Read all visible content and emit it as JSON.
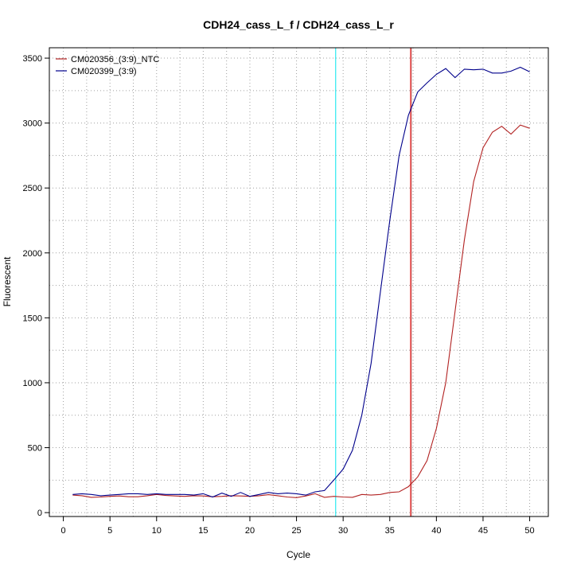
{
  "chart_data": {
    "type": "line",
    "title": "CDH24_cass_L_f / CDH24_cass_L_r",
    "xlabel": "Cycle",
    "ylabel": "Fluorescent",
    "xlim": [
      -1.5,
      52
    ],
    "ylim": [
      -30,
      3580
    ],
    "x_ticks": [
      0,
      5,
      10,
      15,
      20,
      25,
      30,
      35,
      40,
      45,
      50
    ],
    "y_ticks": [
      0,
      500,
      1000,
      1500,
      2000,
      2500,
      3000,
      3500
    ],
    "grid": true,
    "legend_position": "top-left",
    "threshold_lines": [
      {
        "x": 29.2,
        "color": "#00e5ee"
      },
      {
        "x": 37.2,
        "color": "#ff6a6a"
      },
      {
        "x": 37.3,
        "color": "#b22222"
      }
    ],
    "x": [
      1,
      2,
      3,
      4,
      5,
      6,
      7,
      8,
      9,
      10,
      11,
      12,
      13,
      14,
      15,
      16,
      17,
      18,
      19,
      20,
      21,
      22,
      23,
      24,
      25,
      26,
      27,
      28,
      29,
      30,
      31,
      32,
      33,
      34,
      35,
      36,
      37,
      38,
      39,
      40,
      41,
      42,
      43,
      44,
      45,
      46,
      47,
      48,
      49,
      50
    ],
    "series": [
      {
        "name": "CM020356_(3:9)_NTC",
        "color": "#b22222",
        "values": [
          135,
          130,
          118,
          120,
          125,
          128,
          122,
          122,
          130,
          140,
          132,
          128,
          125,
          130,
          128,
          122,
          125,
          130,
          128,
          125,
          130,
          138,
          130,
          120,
          115,
          128,
          145,
          118,
          125,
          120,
          118,
          140,
          135,
          140,
          155,
          160,
          200,
          275,
          400,
          650,
          1000,
          1550,
          2100,
          2550,
          2810,
          2930,
          2975,
          2915,
          2985,
          2960
        ]
      },
      {
        "name": "CM020399_(3:9)",
        "color": "#00008b",
        "values": [
          140,
          145,
          140,
          130,
          135,
          140,
          145,
          145,
          140,
          145,
          140,
          140,
          140,
          135,
          145,
          120,
          150,
          125,
          155,
          125,
          140,
          155,
          145,
          150,
          145,
          135,
          160,
          170,
          250,
          335,
          480,
          750,
          1150,
          1700,
          2250,
          2750,
          3060,
          3240,
          3310,
          3375,
          3420,
          3350,
          3415,
          3410,
          3415,
          3385,
          3385,
          3400,
          3430,
          3395
        ]
      }
    ]
  }
}
